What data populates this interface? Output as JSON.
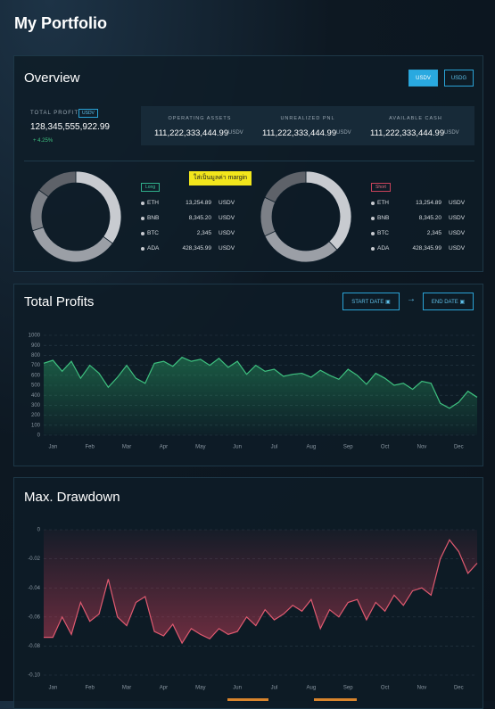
{
  "header": {
    "title": "My Portfolio"
  },
  "overview": {
    "title": "Overview",
    "currency_buttons": [
      "USDV",
      "USDG"
    ],
    "total_profit": {
      "label": "TOTAL PROFIT",
      "currency": "USDV",
      "value": "128,345,555,922.99",
      "change": "+ 4.25%"
    },
    "stats": [
      {
        "label": "OPERATING ASSETS",
        "value": "111,222,333,444.99",
        "currency": "USDV"
      },
      {
        "label": "UNREALIZED PNL",
        "value": "111,222,333,444.99",
        "currency": "USDV"
      },
      {
        "label": "AVAILABLE CASH",
        "value": "111,222,333,444.99",
        "currency": "USDV"
      }
    ],
    "note": "ใส่เป็นมูลค่า margin",
    "long": {
      "label": "Long",
      "donut": {
        "type": "pie",
        "values": [
          35,
          35,
          15,
          15
        ],
        "colors": [
          "#c8cbd0",
          "#9b9fa6",
          "#7c8087",
          "#5e6269"
        ]
      },
      "holdings": [
        {
          "name": "ETH",
          "value": "13,254.89",
          "currency": "USDV"
        },
        {
          "name": "BNB",
          "value": "8,345.20",
          "currency": "USDV"
        },
        {
          "name": "BTC",
          "value": "2,345",
          "currency": "USDV"
        },
        {
          "name": "ADA",
          "value": "428,345.99",
          "currency": "USDV"
        }
      ]
    },
    "short": {
      "label": "Short",
      "donut": {
        "type": "pie",
        "values": [
          38,
          30,
          14,
          18
        ],
        "colors": [
          "#c8cbd0",
          "#9b9fa6",
          "#7c8087",
          "#5e6269"
        ]
      },
      "holdings": [
        {
          "name": "ETH",
          "value": "13,254.89",
          "currency": "USDV"
        },
        {
          "name": "BNB",
          "value": "8,345.20",
          "currency": "USDV"
        },
        {
          "name": "BTC",
          "value": "2,345",
          "currency": "USDV"
        },
        {
          "name": "ADA",
          "value": "428,345.99",
          "currency": "USDV"
        }
      ]
    }
  },
  "total_profits": {
    "title": "Total Profits",
    "start_date": "START DATE",
    "end_date": "END DATE",
    "chart": {
      "type": "line",
      "color": "#3ec07f",
      "categories": [
        null,
        "Jan",
        null,
        null,
        null,
        "Feb",
        null,
        null,
        null,
        "Mar",
        null,
        null,
        null,
        "Apr",
        null,
        null,
        null,
        "May",
        null,
        null,
        null,
        "Jun",
        null,
        null,
        null,
        "Jul",
        null,
        null,
        null,
        "Aug",
        null,
        null,
        null,
        "Sep",
        null,
        null,
        null,
        "Oct",
        null,
        null,
        null,
        "Nov",
        null,
        null,
        null,
        "Dec",
        null,
        null
      ],
      "values": [
        720,
        750,
        640,
        740,
        570,
        700,
        620,
        480,
        580,
        700,
        570,
        520,
        720,
        740,
        690,
        780,
        740,
        760,
        700,
        770,
        680,
        740,
        610,
        700,
        640,
        660,
        590,
        610,
        620,
        580,
        650,
        600,
        560,
        660,
        600,
        510,
        620,
        570,
        500,
        520,
        460,
        540,
        520,
        320,
        270,
        330,
        440,
        380
      ],
      "ylim": [
        0,
        1000
      ],
      "yticks": [
        0,
        100,
        200,
        300,
        400,
        500,
        600,
        700,
        800,
        900,
        1000
      ],
      "grid": true
    }
  },
  "max_drawdown": {
    "title": "Max. Drawdown",
    "chart": {
      "type": "line",
      "color": "#e05a70",
      "categories": [
        null,
        "Jan",
        null,
        null,
        null,
        "Feb",
        null,
        null,
        null,
        "Mar",
        null,
        null,
        null,
        "Apr",
        null,
        null,
        null,
        "May",
        null,
        null,
        null,
        "Jun",
        null,
        null,
        null,
        "Jul",
        null,
        null,
        null,
        "Aug",
        null,
        null,
        null,
        "Sep",
        null,
        null,
        null,
        "Oct",
        null,
        null,
        null,
        "Nov",
        null,
        null,
        null,
        "Dec",
        null,
        null
      ],
      "values": [
        -0.074,
        -0.074,
        -0.06,
        -0.072,
        -0.05,
        -0.063,
        -0.058,
        -0.034,
        -0.06,
        -0.066,
        -0.05,
        -0.046,
        -0.07,
        -0.073,
        -0.065,
        -0.078,
        -0.068,
        -0.072,
        -0.075,
        -0.068,
        -0.072,
        -0.07,
        -0.06,
        -0.066,
        -0.055,
        -0.062,
        -0.058,
        -0.052,
        -0.056,
        -0.048,
        -0.068,
        -0.055,
        -0.06,
        -0.05,
        -0.048,
        -0.062,
        -0.05,
        -0.056,
        -0.045,
        -0.052,
        -0.042,
        -0.04,
        -0.045,
        -0.02,
        -0.007,
        -0.015,
        -0.03,
        -0.023
      ],
      "ylim": [
        -0.1,
        0
      ],
      "yticks": [
        0,
        -0.02,
        -0.04,
        -0.06,
        -0.08,
        {
          "value": -0.1,
          "label": "-0.10"
        }
      ],
      "grid": true
    }
  }
}
